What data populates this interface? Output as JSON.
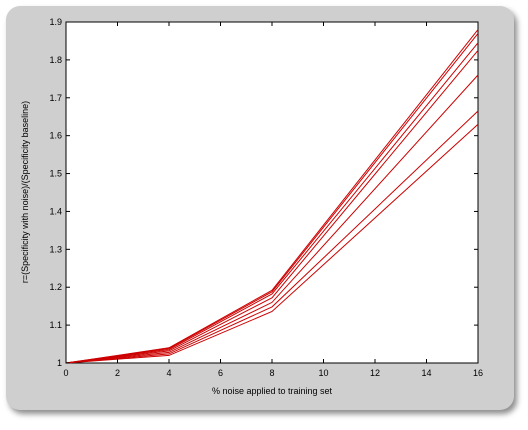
{
  "chart_data": {
    "type": "line",
    "title": "",
    "xlabel": "% noise applied to training set",
    "ylabel": "r=(Specificity with noise)/(Specificity baseline)",
    "xlim": [
      0,
      16
    ],
    "ylim": [
      1,
      1.9
    ],
    "xticks": [
      "0",
      "2",
      "4",
      "6",
      "8",
      "10",
      "12",
      "14",
      "16"
    ],
    "yticks": [
      "1",
      "1.1",
      "1.2",
      "1.3",
      "1.4",
      "1.5",
      "1.6",
      "1.7",
      "1.8",
      "1.9"
    ],
    "grid": false,
    "line_color": "#cc0000",
    "x": [
      0,
      4,
      8,
      16
    ],
    "series": [
      {
        "values": [
          1,
          1.04,
          1.192,
          1.88
        ]
      },
      {
        "values": [
          1,
          1.038,
          1.188,
          1.87
        ]
      },
      {
        "values": [
          1,
          1.035,
          1.182,
          1.845
        ]
      },
      {
        "values": [
          1,
          1.032,
          1.172,
          1.825
        ]
      },
      {
        "values": [
          1,
          1.028,
          1.16,
          1.76
        ]
      },
      {
        "values": [
          1,
          1.024,
          1.148,
          1.665
        ]
      },
      {
        "values": [
          1,
          1.02,
          1.136,
          1.63
        ]
      }
    ]
  }
}
